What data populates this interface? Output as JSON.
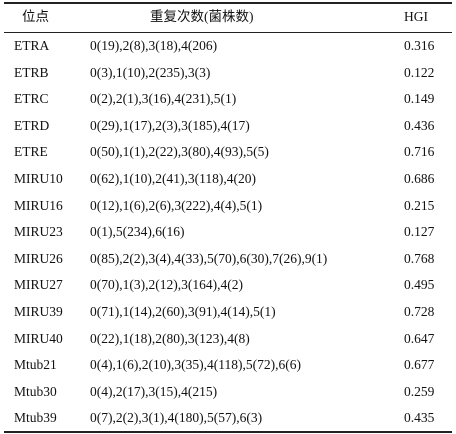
{
  "table": {
    "header": [
      "位点",
      "重复次数(菌株数)",
      "HGI"
    ],
    "rows": [
      [
        "ETRA",
        "0(19),2(8),3(18),4(206)",
        "0.316"
      ],
      [
        "ETRB",
        "0(3),1(10),2(235),3(3)",
        "0.122"
      ],
      [
        "ETRC",
        "0(2),2(1),3(16),4(231),5(1)",
        "0.149"
      ],
      [
        "ETRD",
        "0(29),1(17),2(3),3(185),4(17)",
        "0.436"
      ],
      [
        "ETRE",
        "0(50),1(1),2(22),3(80),4(93),5(5)",
        "0.716"
      ],
      [
        "MIRU10",
        "0(62),1(10),2(41),3(118),4(20)",
        "0.686"
      ],
      [
        "MIRU16",
        "0(12),1(6),2(6),3(222),4(4),5(1)",
        "0.215"
      ],
      [
        "MIRU23",
        "0(1),5(234),6(16)",
        "0.127"
      ],
      [
        "MIRU26",
        "0(85),2(2),3(4),4(33),5(70),6(30),7(26),9(1)",
        "0.768"
      ],
      [
        "MIRU27",
        "0(70),1(3),2(12),3(164),4(2)",
        "0.495"
      ],
      [
        "MIRU39",
        "0(71),1(14),2(60),3(91),4(14),5(1)",
        "0.728"
      ],
      [
        "MIRU40",
        "0(22),1(18),2(80),3(123),4(8)",
        "0.647"
      ],
      [
        "Mtub21",
        "0(4),1(6),2(10),3(35),4(118),5(72),6(6)",
        "0.677"
      ],
      [
        "Mtub30",
        "0(4),2(17),3(15),4(215)",
        "0.259"
      ],
      [
        "Mtub39",
        "0(7),2(2),3(1),4(180),5(57),6(3)",
        "0.435"
      ]
    ]
  }
}
